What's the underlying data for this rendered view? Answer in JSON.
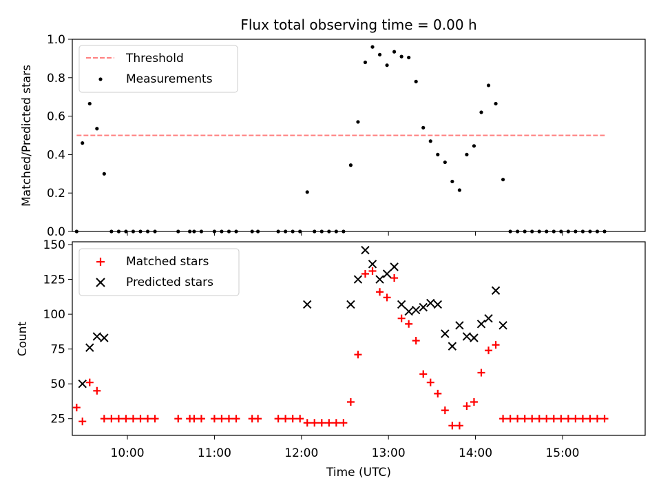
{
  "chart_data": [
    {
      "type": "scatter",
      "title": "Flux total observing time = 0.00 h",
      "ylabel": "Matched/Predicted stars",
      "ylim": [
        0,
        1.0
      ],
      "yticks": [
        "0.0",
        "0.2",
        "0.4",
        "0.6",
        "0.8",
        "1.0"
      ],
      "xlim": [
        "09:22",
        "15:57"
      ],
      "grid": false,
      "legend_position": "top-left",
      "threshold": {
        "name": "Threshold",
        "value": 0.5,
        "x": [
          "09:25",
          "15:30"
        ],
        "color": "#ff8080",
        "style": "dashed"
      },
      "series": [
        {
          "name": "Measurements",
          "color": "#000000",
          "marker": "dot",
          "points": [
            [
              "09:25",
              0.0
            ],
            [
              "09:29",
              0.46
            ],
            [
              "09:34",
              0.665
            ],
            [
              "09:39",
              0.535
            ],
            [
              "09:44",
              0.3
            ],
            [
              "09:49",
              0.0
            ],
            [
              "09:54",
              0.0
            ],
            [
              "09:59",
              0.0
            ],
            [
              "10:04",
              0.0
            ],
            [
              "10:09",
              0.0
            ],
            [
              "10:14",
              0.0
            ],
            [
              "10:19",
              0.0
            ],
            [
              "10:35",
              0.0
            ],
            [
              "10:43",
              0.0
            ],
            [
              "10:46",
              0.0
            ],
            [
              "10:51",
              0.0
            ],
            [
              "11:00",
              0.0
            ],
            [
              "11:05",
              0.0
            ],
            [
              "11:10",
              0.0
            ],
            [
              "11:15",
              0.0
            ],
            [
              "11:26",
              0.0
            ],
            [
              "11:30",
              0.0
            ],
            [
              "11:44",
              0.0
            ],
            [
              "11:49",
              0.0
            ],
            [
              "11:54",
              0.0
            ],
            [
              "11:59",
              0.0
            ],
            [
              "12:04",
              0.205
            ],
            [
              "12:09",
              0.0
            ],
            [
              "12:14",
              0.0
            ],
            [
              "12:19",
              0.0
            ],
            [
              "12:24",
              0.0
            ],
            [
              "12:29",
              0.0
            ],
            [
              "12:34",
              0.345
            ],
            [
              "12:39",
              0.57
            ],
            [
              "12:44",
              0.88
            ],
            [
              "12:49",
              0.96
            ],
            [
              "12:54",
              0.92
            ],
            [
              "12:59",
              0.865
            ],
            [
              "13:04",
              0.935
            ],
            [
              "13:09",
              0.91
            ],
            [
              "13:14",
              0.905
            ],
            [
              "13:19",
              0.78
            ],
            [
              "13:24",
              0.54
            ],
            [
              "13:29",
              0.47
            ],
            [
              "13:34",
              0.4
            ],
            [
              "13:39",
              0.36
            ],
            [
              "13:44",
              0.26
            ],
            [
              "13:49",
              0.215
            ],
            [
              "13:54",
              0.4
            ],
            [
              "13:59",
              0.445
            ],
            [
              "14:04",
              0.62
            ],
            [
              "14:09",
              0.76
            ],
            [
              "14:14",
              0.665
            ],
            [
              "14:19",
              0.27
            ],
            [
              "14:24",
              0.0
            ],
            [
              "14:29",
              0.0
            ],
            [
              "14:34",
              0.0
            ],
            [
              "14:39",
              0.0
            ],
            [
              "14:44",
              0.0
            ],
            [
              "14:49",
              0.0
            ],
            [
              "14:54",
              0.0
            ],
            [
              "14:59",
              0.0
            ],
            [
              "15:04",
              0.0
            ],
            [
              "15:09",
              0.0
            ],
            [
              "15:14",
              0.0
            ],
            [
              "15:19",
              0.0
            ],
            [
              "15:24",
              0.0
            ],
            [
              "15:29",
              0.0
            ]
          ]
        }
      ]
    },
    {
      "type": "scatter",
      "xlabel": "Time (UTC)",
      "ylabel": "Count",
      "ylim": [
        13,
        152
      ],
      "yticks": [
        "25",
        "50",
        "75",
        "100",
        "125",
        "150"
      ],
      "xlim": [
        "09:22",
        "15:57"
      ],
      "xticks": [
        "10:00",
        "11:00",
        "12:00",
        "13:00",
        "14:00",
        "15:00"
      ],
      "grid": false,
      "legend_position": "top-left",
      "series": [
        {
          "name": "Matched stars",
          "color": "#ff0000",
          "marker": "plus",
          "points": [
            [
              "09:25",
              33
            ],
            [
              "09:29",
              23
            ],
            [
              "09:34",
              51
            ],
            [
              "09:39",
              45
            ],
            [
              "09:44",
              25
            ],
            [
              "09:49",
              25
            ],
            [
              "09:54",
              25
            ],
            [
              "09:59",
              25
            ],
            [
              "10:04",
              25
            ],
            [
              "10:09",
              25
            ],
            [
              "10:14",
              25
            ],
            [
              "10:19",
              25
            ],
            [
              "10:35",
              25
            ],
            [
              "10:43",
              25
            ],
            [
              "10:46",
              25
            ],
            [
              "10:51",
              25
            ],
            [
              "11:00",
              25
            ],
            [
              "11:05",
              25
            ],
            [
              "11:10",
              25
            ],
            [
              "11:15",
              25
            ],
            [
              "11:26",
              25
            ],
            [
              "11:30",
              25
            ],
            [
              "11:44",
              25
            ],
            [
              "11:49",
              25
            ],
            [
              "11:54",
              25
            ],
            [
              "11:59",
              25
            ],
            [
              "12:04",
              22
            ],
            [
              "12:09",
              22
            ],
            [
              "12:14",
              22
            ],
            [
              "12:19",
              22
            ],
            [
              "12:24",
              22
            ],
            [
              "12:29",
              22
            ],
            [
              "12:34",
              37
            ],
            [
              "12:39",
              71
            ],
            [
              "12:44",
              129
            ],
            [
              "12:49",
              131
            ],
            [
              "12:54",
              116
            ],
            [
              "12:59",
              112
            ],
            [
              "13:04",
              126
            ],
            [
              "13:09",
              97
            ],
            [
              "13:14",
              93
            ],
            [
              "13:19",
              81
            ],
            [
              "13:24",
              57
            ],
            [
              "13:29",
              51
            ],
            [
              "13:34",
              43
            ],
            [
              "13:39",
              31
            ],
            [
              "13:44",
              20
            ],
            [
              "13:49",
              20
            ],
            [
              "13:54",
              34
            ],
            [
              "13:59",
              37
            ],
            [
              "14:04",
              58
            ],
            [
              "14:09",
              74
            ],
            [
              "14:14",
              78
            ],
            [
              "14:19",
              25
            ],
            [
              "14:24",
              25
            ],
            [
              "14:29",
              25
            ],
            [
              "14:34",
              25
            ],
            [
              "14:39",
              25
            ],
            [
              "14:44",
              25
            ],
            [
              "14:49",
              25
            ],
            [
              "14:54",
              25
            ],
            [
              "14:59",
              25
            ],
            [
              "15:04",
              25
            ],
            [
              "15:09",
              25
            ],
            [
              "15:14",
              25
            ],
            [
              "15:19",
              25
            ],
            [
              "15:24",
              25
            ],
            [
              "15:29",
              25
            ]
          ]
        },
        {
          "name": "Predicted stars",
          "color": "#000000",
          "marker": "x",
          "points": [
            [
              "09:29",
              50
            ],
            [
              "09:34",
              76
            ],
            [
              "09:39",
              84
            ],
            [
              "09:44",
              83
            ],
            [
              "12:04",
              107
            ],
            [
              "12:34",
              107
            ],
            [
              "12:39",
              125
            ],
            [
              "12:44",
              146
            ],
            [
              "12:49",
              136
            ],
            [
              "12:54",
              125
            ],
            [
              "12:59",
              129
            ],
            [
              "13:04",
              134
            ],
            [
              "13:09",
              107
            ],
            [
              "13:14",
              102
            ],
            [
              "13:19",
              103
            ],
            [
              "13:24",
              105
            ],
            [
              "13:29",
              108
            ],
            [
              "13:34",
              107
            ],
            [
              "13:39",
              86
            ],
            [
              "13:44",
              77
            ],
            [
              "13:49",
              92
            ],
            [
              "13:54",
              84
            ],
            [
              "13:59",
              83
            ],
            [
              "14:04",
              93
            ],
            [
              "14:09",
              97
            ],
            [
              "14:14",
              117
            ],
            [
              "14:19",
              92
            ]
          ]
        }
      ]
    }
  ]
}
